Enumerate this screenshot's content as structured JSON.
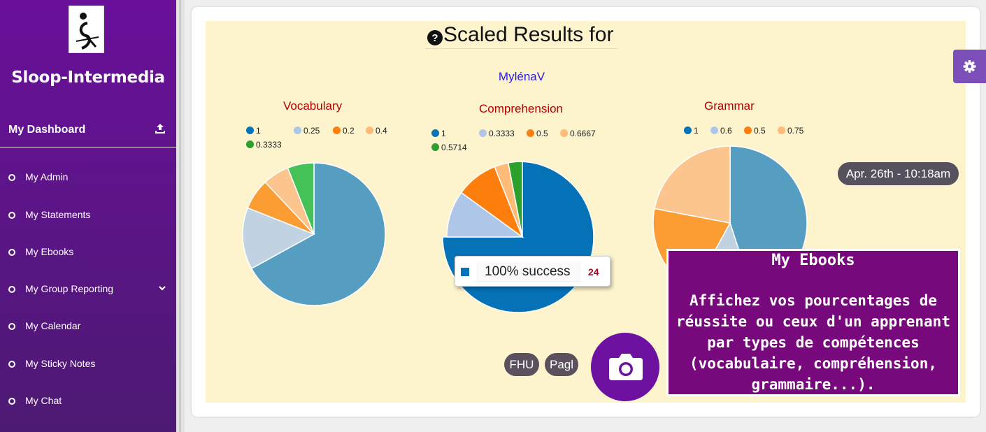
{
  "sidebar": {
    "brand": "Sloop-Intermedia",
    "dashboard_label": "My Dashboard",
    "items": [
      {
        "label": "My Admin"
      },
      {
        "label": "My Statements"
      },
      {
        "label": "My Ebooks"
      },
      {
        "label": "My Group Reporting"
      },
      {
        "label": "My Calendar"
      },
      {
        "label": "My Sticky Notes"
      },
      {
        "label": "My Chat"
      }
    ]
  },
  "main": {
    "title": "Scaled Results for",
    "user": "MylénaV",
    "date": "Apr. 26th - 10:18am",
    "buttons": [
      "FHU",
      "Pagl"
    ]
  },
  "tooltip": {
    "label": "100% success",
    "value": "24"
  },
  "overlay": {
    "title": "My Ebooks",
    "body": "Affichez vos pourcentages de réussite ou ceux d'un apprenant par types de compétences (vocabulaire, compréhension, grammaire...)."
  },
  "colors": {
    "s1": "#0572b8",
    "s2": "#aec7e8",
    "s3": "#ff7f0e",
    "s4": "#ffbb78",
    "s5": "#2ca02c"
  },
  "chart_data": [
    {
      "type": "pie",
      "title": "Vocabulary",
      "legend": [
        "1",
        "0.25",
        "0.2",
        "0.4",
        "0.3333"
      ],
      "values": [
        67,
        14,
        7,
        6,
        6
      ]
    },
    {
      "type": "pie",
      "title": "Comprehension",
      "legend": [
        "1",
        "0.3333",
        "0.5",
        "0.6667",
        "0.5714"
      ],
      "values": [
        75,
        10,
        9,
        3,
        3
      ]
    },
    {
      "type": "pie",
      "title": "Grammar",
      "legend": [
        "1",
        "0.6",
        "0.5",
        "0.75"
      ],
      "values": [
        45,
        13,
        20,
        22
      ]
    }
  ]
}
